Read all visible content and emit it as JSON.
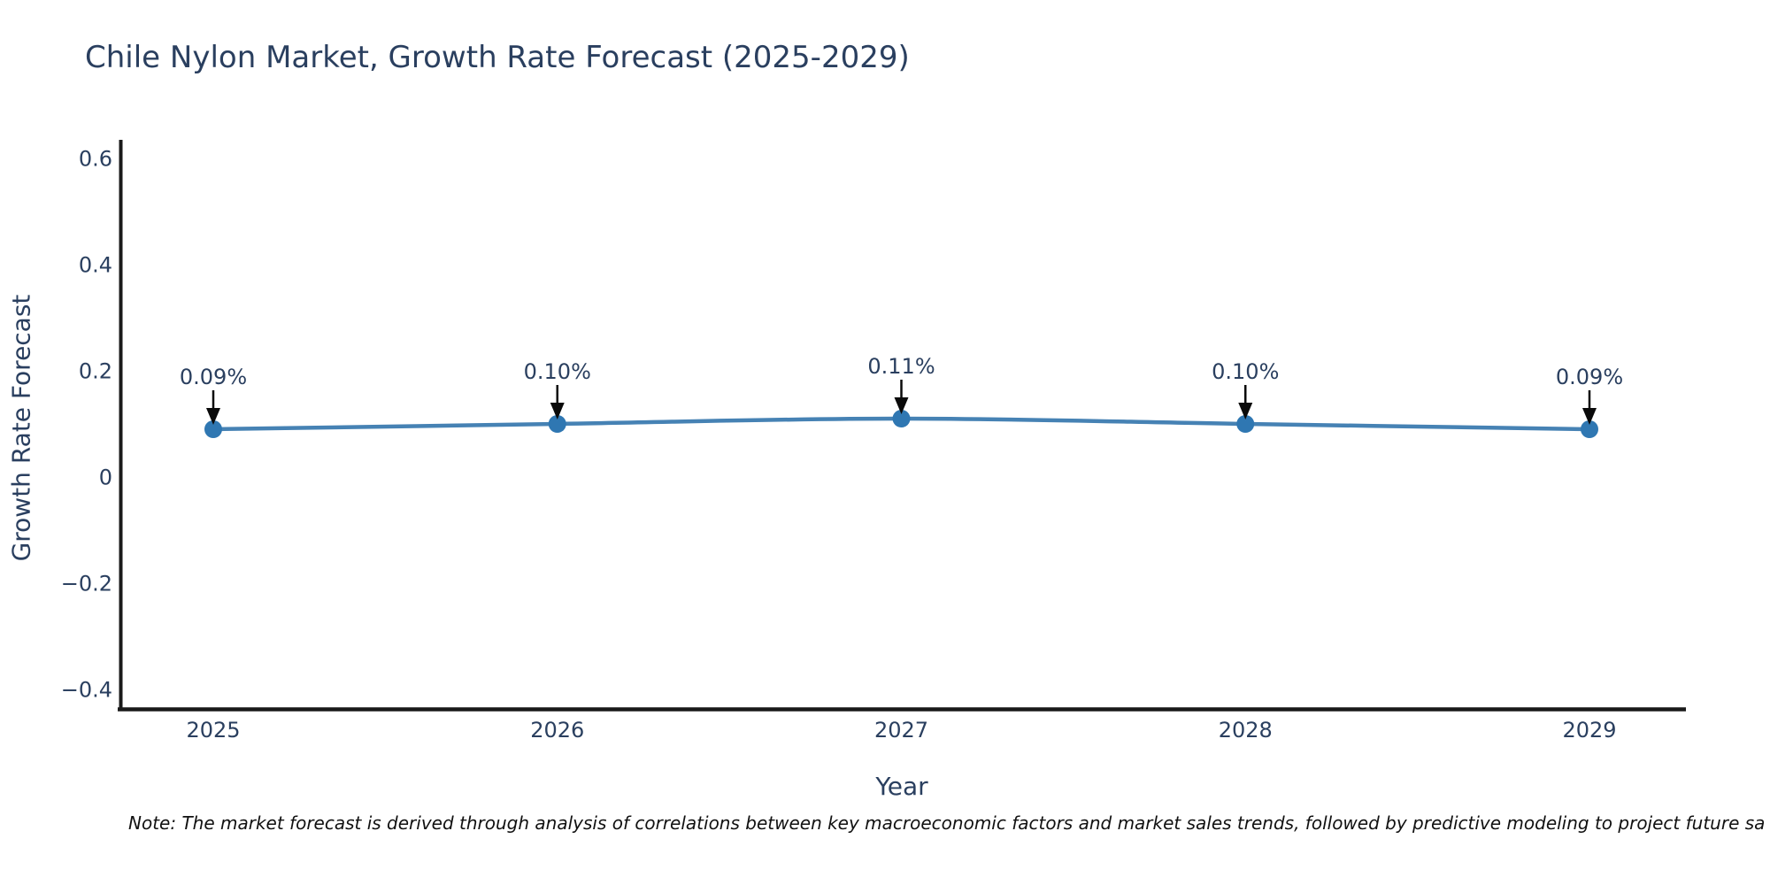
{
  "page": {
    "background": "#ffffff"
  },
  "title": {
    "text": "Chile Nylon Market, Growth Rate Forecast (2025-2029)",
    "color": "#2a3f5f"
  },
  "note": {
    "text": "Note: The market forecast is derived through analysis of correlations between key macroeconomic factors and market sales trends, followed by predictive modeling to project future sa"
  },
  "chart_data": {
    "type": "line",
    "title": "Chile Nylon Market, Growth Rate Forecast (2025-2029)",
    "xlabel": "Year",
    "ylabel": "Growth Rate Forecast",
    "x": [
      2025,
      2026,
      2027,
      2028,
      2029
    ],
    "series": [
      {
        "name": "Growth Rate Forecast",
        "values": [
          0.09,
          0.1,
          0.11,
          0.1,
          0.09
        ]
      }
    ],
    "point_labels": [
      "0.09%",
      "0.10%",
      "0.11%",
      "0.10%",
      "0.09%"
    ],
    "xtick_labels": [
      "2025",
      "2026",
      "2027",
      "2028",
      "2029"
    ],
    "yticks": [
      0.6,
      0.4,
      0.2,
      0,
      -0.2,
      -0.4
    ],
    "ytick_labels": [
      "0.6",
      "0.4",
      "0.2",
      "0",
      "−0.2",
      "−0.4"
    ],
    "ylim": [
      -0.437,
      0.632
    ],
    "grid": false,
    "legend_position": "none",
    "annotation_arrows": true,
    "colors": {
      "line": "#4682b4",
      "marker": "#2f77b2",
      "axis": "#1a1a1a",
      "text": "#2a3f5f",
      "arrow": "#0a0a0a"
    }
  }
}
